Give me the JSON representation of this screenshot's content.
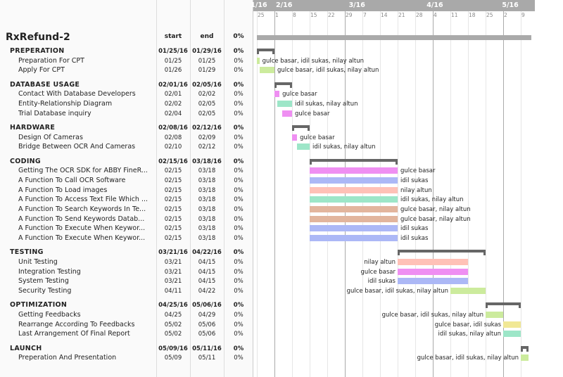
{
  "project": {
    "title": "RxRefund-2",
    "col_start": "start",
    "col_end": "end",
    "col_pct": "0%"
  },
  "timeline": {
    "months": [
      "1/16",
      "2/16",
      "3/16",
      "4/16",
      "5/16"
    ],
    "days": [
      "25",
      "1",
      "8",
      "15",
      "22",
      "29",
      "7",
      "14",
      "21",
      "28",
      "4",
      "11",
      "18",
      "25",
      "2",
      "9"
    ]
  },
  "colors": {
    "purple": "#e494e6",
    "blue": "#aeb8ec",
    "salmon": "#fdc3bb",
    "teal": "#a6e3ca",
    "tan": "#dcb6a2",
    "green": "#cfe9a8",
    "yellow": "#efe7a2",
    "summary": "#666666",
    "project_bar": "#aaaaaa"
  },
  "groups": [
    {
      "name": "PREPERATION",
      "start": "01/25/16",
      "end": "01/29/16",
      "pct": "0%",
      "tasks": [
        {
          "name": "Preparation For CPT",
          "start": "01/25",
          "end": "01/25",
          "pct": "0%",
          "color": "green",
          "who": "gulce basar, idil sukas, nilay altun"
        },
        {
          "name": "Apply For CPT",
          "start": "01/26",
          "end": "01/29",
          "pct": "0%",
          "color": "green",
          "who": "gulce basar, idil sukas, nilay altun"
        }
      ]
    },
    {
      "name": "DATABASE USAGE",
      "start": "02/01/16",
      "end": "02/05/16",
      "pct": "0%",
      "tasks": [
        {
          "name": "Contact With Database Developers",
          "start": "02/01",
          "end": "02/02",
          "pct": "0%",
          "color": "purple",
          "who": "gulce basar"
        },
        {
          "name": "Entity-Relationship Diagram",
          "start": "02/02",
          "end": "02/05",
          "pct": "0%",
          "color": "teal",
          "who": "idil sukas, nilay altun"
        },
        {
          "name": "Trial Database inquiry",
          "start": "02/04",
          "end": "02/05",
          "pct": "0%",
          "color": "purple",
          "who": "gulce basar"
        }
      ]
    },
    {
      "name": "HARDWARE",
      "start": "02/08/16",
      "end": "02/12/16",
      "pct": "0%",
      "tasks": [
        {
          "name": "Design Of Cameras",
          "start": "02/08",
          "end": "02/09",
          "pct": "0%",
          "color": "purple",
          "who": "gulce basar"
        },
        {
          "name": "Bridge Between OCR And Cameras",
          "start": "02/10",
          "end": "02/12",
          "pct": "0%",
          "color": "teal",
          "who": "idil sukas, nilay altun"
        }
      ]
    },
    {
      "name": "CODING",
      "start": "02/15/16",
      "end": "03/18/16",
      "pct": "0%",
      "tasks": [
        {
          "name": "Getting The OCR SDK for ABBY FineR...",
          "start": "02/15",
          "end": "03/18",
          "pct": "0%",
          "color": "purple",
          "who": "gulce basar"
        },
        {
          "name": "A Function To Call OCR Software",
          "start": "02/15",
          "end": "03/18",
          "pct": "0%",
          "color": "blue",
          "who": "idil sukas"
        },
        {
          "name": "A Function To Load images",
          "start": "02/15",
          "end": "03/18",
          "pct": "0%",
          "color": "salmon",
          "who": "nilay altun"
        },
        {
          "name": "A Function To Access Text File Which ...",
          "start": "02/15",
          "end": "03/18",
          "pct": "0%",
          "color": "teal",
          "who": "idil sukas, nilay altun"
        },
        {
          "name": "A Function To Search Keywords In Te...",
          "start": "02/15",
          "end": "03/18",
          "pct": "0%",
          "color": "tan",
          "who": "gulce basar, nilay altun"
        },
        {
          "name": "A Function To Send Keywords Datab...",
          "start": "02/15",
          "end": "03/18",
          "pct": "0%",
          "color": "tan",
          "who": "gulce basar, nilay altun"
        },
        {
          "name": "A Function To Execute When Keywor...",
          "start": "02/15",
          "end": "03/18",
          "pct": "0%",
          "color": "blue",
          "who": "idil sukas"
        },
        {
          "name": "A Function To Execute When Keywor...",
          "start": "02/15",
          "end": "03/18",
          "pct": "0%",
          "color": "blue",
          "who": "idil sukas"
        }
      ]
    },
    {
      "name": "TESTING",
      "start": "03/21/16",
      "end": "04/22/16",
      "pct": "0%",
      "tasks": [
        {
          "name": "Unit Testing",
          "start": "03/21",
          "end": "04/15",
          "pct": "0%",
          "color": "salmon",
          "who": "nilay altun"
        },
        {
          "name": "Integration Testing",
          "start": "03/21",
          "end": "04/15",
          "pct": "0%",
          "color": "purple",
          "who": "gulce basar"
        },
        {
          "name": "System Testing",
          "start": "03/21",
          "end": "04/15",
          "pct": "0%",
          "color": "blue",
          "who": "idil sukas"
        },
        {
          "name": "Security Testing",
          "start": "04/11",
          "end": "04/22",
          "pct": "0%",
          "color": "green",
          "who": "gulce basar, idil sukas, nilay altun"
        }
      ]
    },
    {
      "name": "OPTIMIZATION",
      "start": "04/25/16",
      "end": "05/06/16",
      "pct": "0%",
      "tasks": [
        {
          "name": "Getting Feedbacks",
          "start": "04/25",
          "end": "04/29",
          "pct": "0%",
          "color": "green",
          "who": "gulce basar, idil sukas, nilay altun"
        },
        {
          "name": "Rearrange According To Feedbacks",
          "start": "05/02",
          "end": "05/06",
          "pct": "0%",
          "color": "yellow",
          "who": "gulce basar, idil sukas"
        },
        {
          "name": "Last Arrangement Of Final Report",
          "start": "05/02",
          "end": "05/06",
          "pct": "0%",
          "color": "teal",
          "who": "idil sukas, nilay altun"
        }
      ]
    },
    {
      "name": "LAUNCH",
      "start": "05/09/16",
      "end": "05/11/16",
      "pct": "0%",
      "tasks": [
        {
          "name": "Preperation And Presentation",
          "start": "05/09",
          "end": "05/11",
          "pct": "0%",
          "color": "green",
          "who": "gulce basar, idil sukas, nilay altun"
        }
      ]
    }
  ]
}
